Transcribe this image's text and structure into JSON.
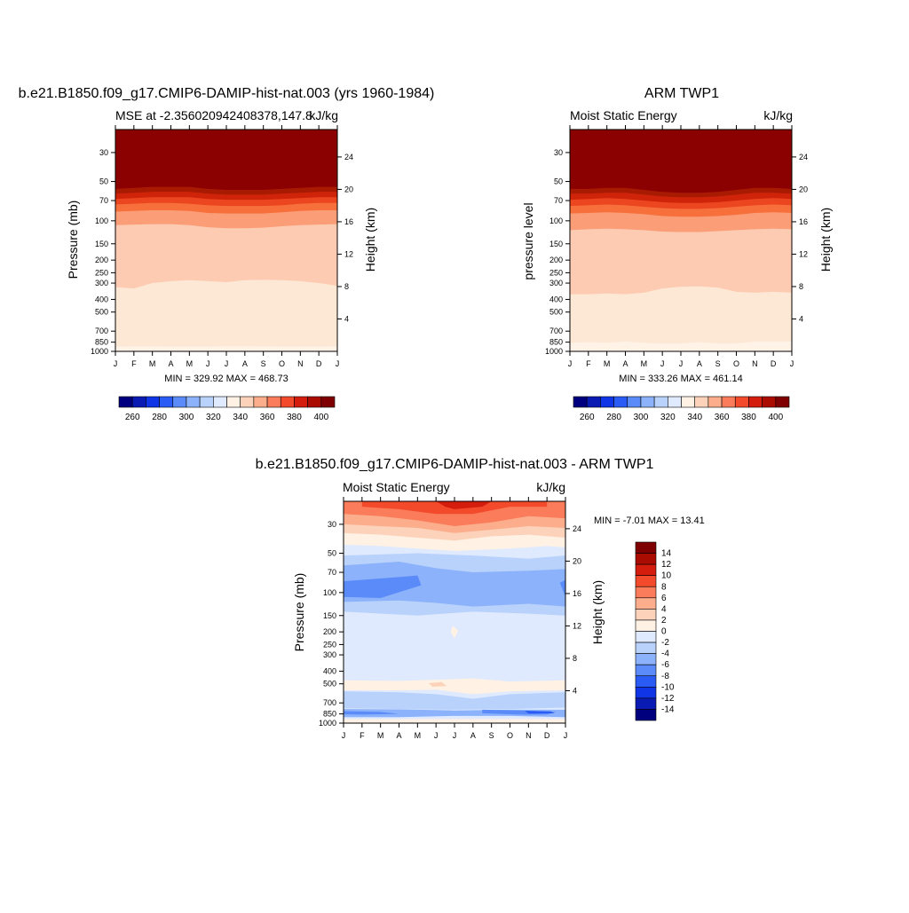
{
  "panels": {
    "model": {
      "title": "b.e21.B1850.f09_g17.CMIP6-DAMIP-hist-nat.003 (yrs 1960-1984)",
      "left_label": "MSE at -2.356020942408378,147.8",
      "units": "kJ/kg",
      "ylabel": "Pressure (mb)",
      "y2label": "Height (km)",
      "minmax": "MIN = 329.92 MAX = 468.73"
    },
    "obs": {
      "title": "ARM TWP1",
      "left_label": "Moist Static Energy",
      "units": "kJ/kg",
      "ylabel": "pressure level",
      "y2label": "Height (km)",
      "minmax": "MIN = 333.26 MAX = 461.14"
    },
    "diff": {
      "title": "b.e21.B1850.f09_g17.CMIP6-DAMIP-hist-nat.003 - ARM TWP1",
      "left_label": "Moist Static Energy",
      "units": "kJ/kg",
      "ylabel": "Pressure (mb)",
      "y2label": "Height (km)",
      "minmax": "MIN =  -7.01 MAX =  13.41"
    }
  },
  "chart_data": [
    {
      "type": "heatmap",
      "title": "b.e21.B1850.f09_g17.CMIP6-DAMIP-hist-nat.003 (yrs 1960-1984)",
      "subtitle": "MSE at -2.356020942408378,147.8",
      "units": "kJ/kg",
      "xlabel": "",
      "ylabel": "Pressure (mb)",
      "y2label": "Height (km)",
      "x": [
        "J",
        "F",
        "M",
        "A",
        "M",
        "J",
        "J",
        "A",
        "S",
        "O",
        "N",
        "D",
        "J"
      ],
      "y_pressure_ticks": [
        30,
        50,
        70,
        100,
        150,
        200,
        250,
        300,
        400,
        500,
        700,
        850,
        1000
      ],
      "y_height_ticks": [
        4,
        8,
        12,
        16,
        20,
        24
      ],
      "ylim": [
        1000,
        20
      ],
      "levels": [
        260,
        270,
        280,
        290,
        300,
        310,
        320,
        330,
        340,
        350,
        360,
        370,
        380,
        390,
        400
      ],
      "colorbar_labels": [
        "260",
        "280",
        "300",
        "320",
        "340",
        "360",
        "380",
        "400"
      ],
      "band_boundaries_mb": {
        "above_400": [
          57,
          56,
          55,
          55,
          55,
          57,
          58,
          58,
          58,
          57,
          56,
          55,
          55
        ],
        "390_400": [
          62,
          61,
          60,
          60,
          60,
          62,
          63,
          63,
          63,
          62,
          61,
          60,
          60
        ],
        "380_390": [
          68,
          67,
          66,
          66,
          66,
          68,
          69,
          69,
          69,
          68,
          67,
          66,
          66
        ],
        "370_380": [
          75,
          74,
          73,
          73,
          74,
          76,
          77,
          77,
          77,
          76,
          74,
          73,
          73
        ],
        "360_370": [
          85,
          84,
          83,
          83,
          84,
          87,
          88,
          88,
          88,
          86,
          84,
          83,
          83
        ],
        "350_360": [
          108,
          107,
          106,
          106,
          108,
          112,
          114,
          114,
          113,
          110,
          108,
          107,
          106
        ],
        "340_350": [
          322,
          330,
          300,
          290,
          285,
          290,
          295,
          285,
          283,
          285,
          290,
          300,
          315
        ],
        "330_340": [
          920,
          915,
          915,
          918,
          920,
          918,
          912,
          912,
          915,
          918,
          920,
          918,
          915
        ]
      },
      "min": 329.92,
      "max": 468.73
    },
    {
      "type": "heatmap",
      "title": "ARM TWP1",
      "subtitle": "Moist Static Energy",
      "units": "kJ/kg",
      "xlabel": "",
      "ylabel": "pressure level",
      "y2label": "Height (km)",
      "x": [
        "J",
        "F",
        "M",
        "A",
        "M",
        "J",
        "J",
        "A",
        "S",
        "O",
        "N",
        "D",
        "J"
      ],
      "y_pressure_ticks": [
        30,
        50,
        70,
        100,
        150,
        200,
        250,
        300,
        400,
        500,
        700,
        850,
        1000
      ],
      "y_height_ticks": [
        4,
        8,
        12,
        16,
        20,
        24
      ],
      "ylim": [
        1000,
        20
      ],
      "levels": [
        260,
        270,
        280,
        290,
        300,
        310,
        320,
        330,
        340,
        350,
        360,
        370,
        380,
        390,
        400
      ],
      "colorbar_labels": [
        "260",
        "280",
        "300",
        "320",
        "340",
        "360",
        "380",
        "400"
      ],
      "band_boundaries_mb": {
        "above_400": [
          57,
          57,
          56,
          56,
          58,
          60,
          61,
          61,
          60,
          58,
          56,
          56,
          57
        ],
        "390_400": [
          62,
          62,
          61,
          61,
          63,
          65,
          66,
          66,
          65,
          63,
          61,
          61,
          62
        ],
        "380_390": [
          69,
          68,
          67,
          68,
          70,
          72,
          73,
          73,
          72,
          70,
          68,
          67,
          68
        ],
        "370_380": [
          77,
          76,
          75,
          76,
          78,
          80,
          81,
          81,
          80,
          78,
          76,
          75,
          76
        ],
        "360_370": [
          88,
          87,
          86,
          87,
          89,
          92,
          93,
          93,
          92,
          90,
          87,
          86,
          87
        ],
        "350_360": [
          118,
          116,
          115,
          116,
          118,
          121,
          122,
          122,
          120,
          118,
          116,
          115,
          116
        ],
        "340_350": [
          365,
          365,
          360,
          365,
          355,
          330,
          320,
          318,
          325,
          350,
          355,
          350,
          355
        ],
        "330_340": [
          860,
          850,
          860,
          840,
          860,
          870,
          870,
          850,
          870,
          870,
          840,
          840,
          840
        ]
      },
      "min": 333.26,
      "max": 461.14
    },
    {
      "type": "heatmap",
      "title": "b.e21.B1850.f09_g17.CMIP6-DAMIP-hist-nat.003 - ARM TWP1",
      "subtitle": "Moist Static Energy",
      "units": "kJ/kg",
      "xlabel": "",
      "ylabel": "Pressure (mb)",
      "y2label": "Height (km)",
      "x": [
        "J",
        "F",
        "M",
        "A",
        "M",
        "J",
        "J",
        "A",
        "S",
        "O",
        "N",
        "D",
        "J"
      ],
      "y_pressure_ticks": [
        30,
        50,
        70,
        100,
        150,
        200,
        250,
        300,
        400,
        500,
        700,
        850,
        1000
      ],
      "y_height_ticks": [
        4,
        8,
        12,
        16,
        20,
        24
      ],
      "ylim": [
        1000,
        20
      ],
      "levels": [
        -14,
        -12,
        -10,
        -8,
        -6,
        -4,
        -2,
        0,
        2,
        4,
        6,
        8,
        10,
        12,
        14
      ],
      "colorbar_labels": [
        "14",
        "12",
        "10",
        "8",
        "6",
        "4",
        "2",
        "0",
        "-2",
        "-4",
        "-6",
        "-8",
        "-10",
        "-12",
        "-14"
      ],
      "features": [
        {
          "value_range": [
            8,
            14
          ],
          "pressure_mb": [
            20,
            32
          ],
          "months": "all, strongest Jun-Aug"
        },
        {
          "value_range": [
            2,
            6
          ],
          "pressure_mb": [
            32,
            45
          ],
          "months": "all"
        },
        {
          "value_range": [
            -8,
            -6
          ],
          "pressure_mb": [
            80,
            115
          ],
          "months": "Jan-May"
        },
        {
          "value_range": [
            -4,
            -2
          ],
          "pressure_mb": [
            55,
            150
          ],
          "months": "all"
        },
        {
          "value_range": [
            0,
            2
          ],
          "pressure_mb": [
            470,
            560
          ],
          "months": "all"
        },
        {
          "value_range": [
            -8,
            -4
          ],
          "pressure_mb": [
            780,
            900
          ],
          "months": "all"
        }
      ],
      "min": -7.01,
      "max": 13.41
    }
  ]
}
